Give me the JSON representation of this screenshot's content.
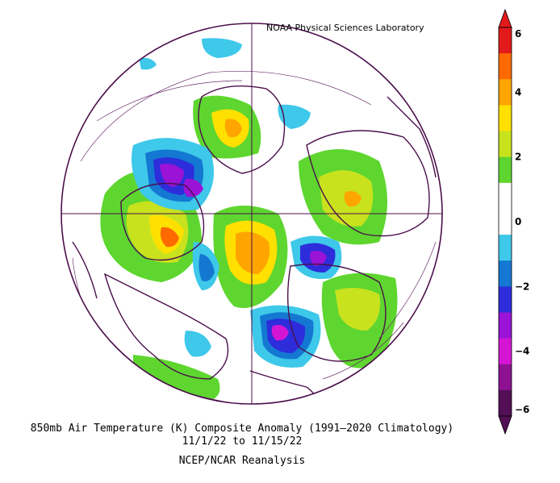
{
  "header": {
    "credit": "NOAA Physical Sciences Laboratory"
  },
  "caption": {
    "line1": "850mb Air Temperature (K) Composite Anomaly (1991–2020 Climatology)",
    "line2": "11/1/22   to 11/15/22",
    "line3": "NCEP/NCAR Reanalysis"
  },
  "colorbar": {
    "labels": [
      "6",
      "4",
      "2",
      "0",
      "−2",
      "−4",
      "−6"
    ],
    "colors": [
      "#e31a1c",
      "#ff6a00",
      "#ffa500",
      "#ffe000",
      "#c8e21e",
      "#5ed62f",
      "#ffffff",
      "#ffffff",
      "#3ec8ea",
      "#1478d2",
      "#2d2ddc",
      "#9a13d6",
      "#d416d4",
      "#8e1192",
      "#520f55"
    ]
  },
  "map": {
    "projection": "north-polar-stereographic",
    "palette": {
      "warm6": "#ff6a00",
      "warm4": "#ffa500",
      "warm3": "#ffe000",
      "warm2": "#c8e21e",
      "warm1": "#5ed62f",
      "cool1": "#3ec8ea",
      "cool2": "#1478d2",
      "cool3": "#2d2ddc",
      "cool4": "#9a13d6",
      "cool5": "#d416d4",
      "border": "#4b0f4b"
    }
  }
}
